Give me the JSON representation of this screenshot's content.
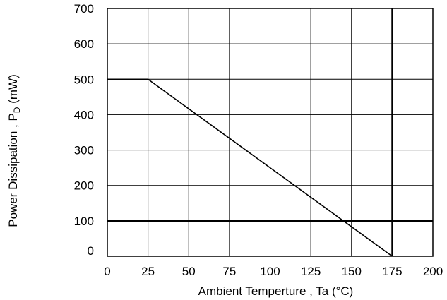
{
  "chart_data": {
    "type": "line",
    "title": "",
    "xlabel": "Ambient Temperture , Ta (°C)",
    "ylabel_main": "Power Dissipation , P",
    "ylabel_sub": "D",
    "ylabel_unit": " (mW)",
    "xlim": [
      0,
      200
    ],
    "ylim": [
      0,
      700
    ],
    "x_ticks": [
      0,
      25,
      50,
      75,
      100,
      125,
      150,
      175,
      200
    ],
    "y_ticks": [
      0,
      100,
      200,
      300,
      400,
      500,
      600,
      700
    ],
    "grid": true,
    "series": [
      {
        "x": [
          0,
          25,
          175
        ],
        "y": [
          500,
          500,
          0
        ]
      }
    ],
    "vertical_reference_line_x": 175,
    "horizontal_reference_line_y": 100,
    "colors": {
      "line": "#000000",
      "grid": "#000000"
    }
  }
}
